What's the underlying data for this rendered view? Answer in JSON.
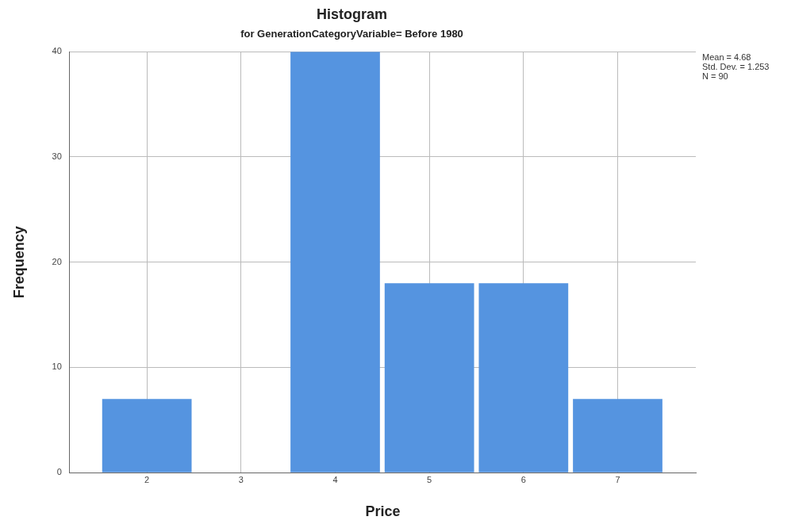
{
  "chart_data": {
    "type": "histogram",
    "title": "Histogram",
    "subtitle": "for GenerationCategoryVariable= Before 1980",
    "xlabel": "Price",
    "ylabel": "Frequency",
    "bins": [
      1.5,
      2.5,
      3.5,
      4.5,
      5.5,
      6.5,
      7.5
    ],
    "values": [
      7,
      0,
      40,
      18,
      18,
      7
    ],
    "color": "#5594e0",
    "xlim": [
      1.18,
      7.83
    ],
    "xticks": [
      2,
      3,
      4,
      5,
      6,
      7
    ],
    "ylim": [
      0,
      40
    ],
    "yticks": [
      0,
      10,
      20,
      30,
      40
    ],
    "grid": true,
    "legend": false,
    "annotations": [
      "Mean = 4.68",
      "Std. Dev. = 1.253",
      "N = 90"
    ]
  }
}
